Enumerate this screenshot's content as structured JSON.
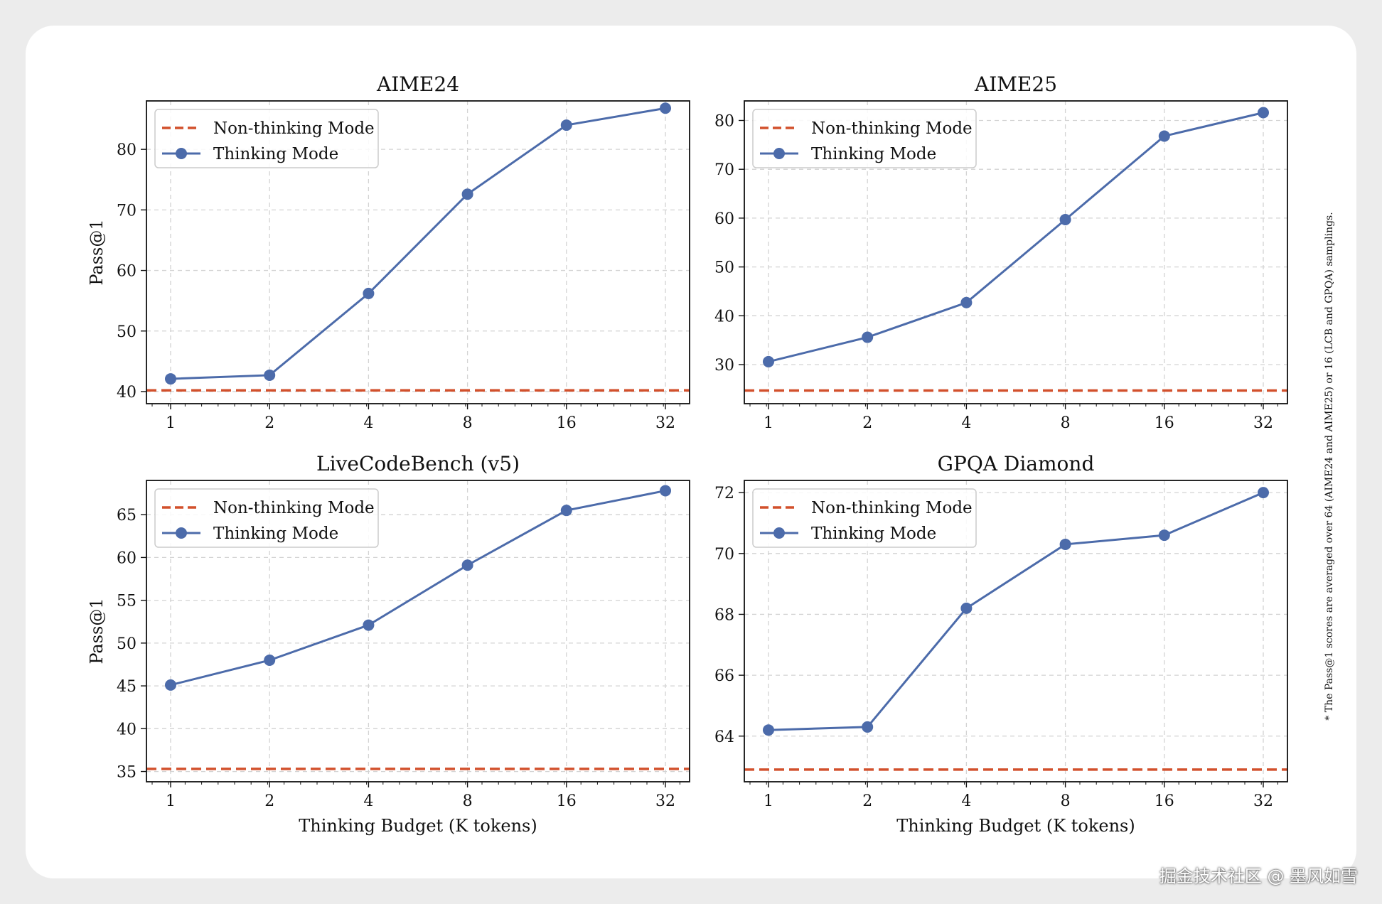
{
  "footnote": "* The Pass@1 scores are averaged over 64 (AIME24 and AIME25) or 16 (LCB and GPQA) samplings.",
  "watermark": "掘金技术社区 @ 墨风如雪",
  "colors": {
    "thinking": "#4c6baa",
    "non_thinking": "#d2502c",
    "grid": "#d3d3d3",
    "axis": "#111111"
  },
  "legend": {
    "non_thinking": "Non-thinking Mode",
    "thinking": "Thinking Mode"
  },
  "chart_data": [
    {
      "type": "line",
      "title": "AIME24",
      "xlabel": "",
      "ylabel": "Pass@1",
      "categories": [
        "1",
        "2",
        "4",
        "8",
        "16",
        "32"
      ],
      "ylim": [
        38,
        88
      ],
      "yticks": [
        40,
        50,
        60,
        70,
        80
      ],
      "series": [
        {
          "name": "Thinking Mode",
          "values": [
            42.1,
            42.7,
            56.2,
            72.6,
            84.0,
            86.8
          ]
        },
        {
          "name": "Non-thinking Mode",
          "baseline": 40.2
        }
      ],
      "legend_position": "upper left"
    },
    {
      "type": "line",
      "title": "AIME25",
      "xlabel": "",
      "ylabel": "",
      "categories": [
        "1",
        "2",
        "4",
        "8",
        "16",
        "32"
      ],
      "ylim": [
        22,
        84
      ],
      "yticks": [
        30,
        40,
        50,
        60,
        70,
        80
      ],
      "series": [
        {
          "name": "Thinking Mode",
          "values": [
            30.6,
            35.6,
            42.7,
            59.7,
            76.8,
            81.6
          ]
        },
        {
          "name": "Non-thinking Mode",
          "baseline": 24.7
        }
      ],
      "legend_position": "upper left"
    },
    {
      "type": "line",
      "title": "LiveCodeBench (v5)",
      "xlabel": "Thinking Budget (K tokens)",
      "ylabel": "Pass@1",
      "categories": [
        "1",
        "2",
        "4",
        "8",
        "16",
        "32"
      ],
      "ylim": [
        33.8,
        69
      ],
      "yticks": [
        35,
        40,
        45,
        50,
        55,
        60,
        65
      ],
      "series": [
        {
          "name": "Thinking Mode",
          "values": [
            45.1,
            48.0,
            52.1,
            59.1,
            65.5,
            67.8
          ]
        },
        {
          "name": "Non-thinking Mode",
          "baseline": 35.3
        }
      ],
      "legend_position": "upper left"
    },
    {
      "type": "line",
      "title": "GPQA Diamond",
      "xlabel": "Thinking Budget (K tokens)",
      "ylabel": "",
      "categories": [
        "1",
        "2",
        "4",
        "8",
        "16",
        "32"
      ],
      "ylim": [
        62.5,
        72.4
      ],
      "yticks": [
        64,
        66,
        68,
        70,
        72
      ],
      "series": [
        {
          "name": "Thinking Mode",
          "values": [
            64.2,
            64.3,
            68.2,
            70.3,
            70.6,
            72.0
          ]
        },
        {
          "name": "Non-thinking Mode",
          "baseline": 62.9
        }
      ],
      "legend_position": "upper left"
    }
  ]
}
